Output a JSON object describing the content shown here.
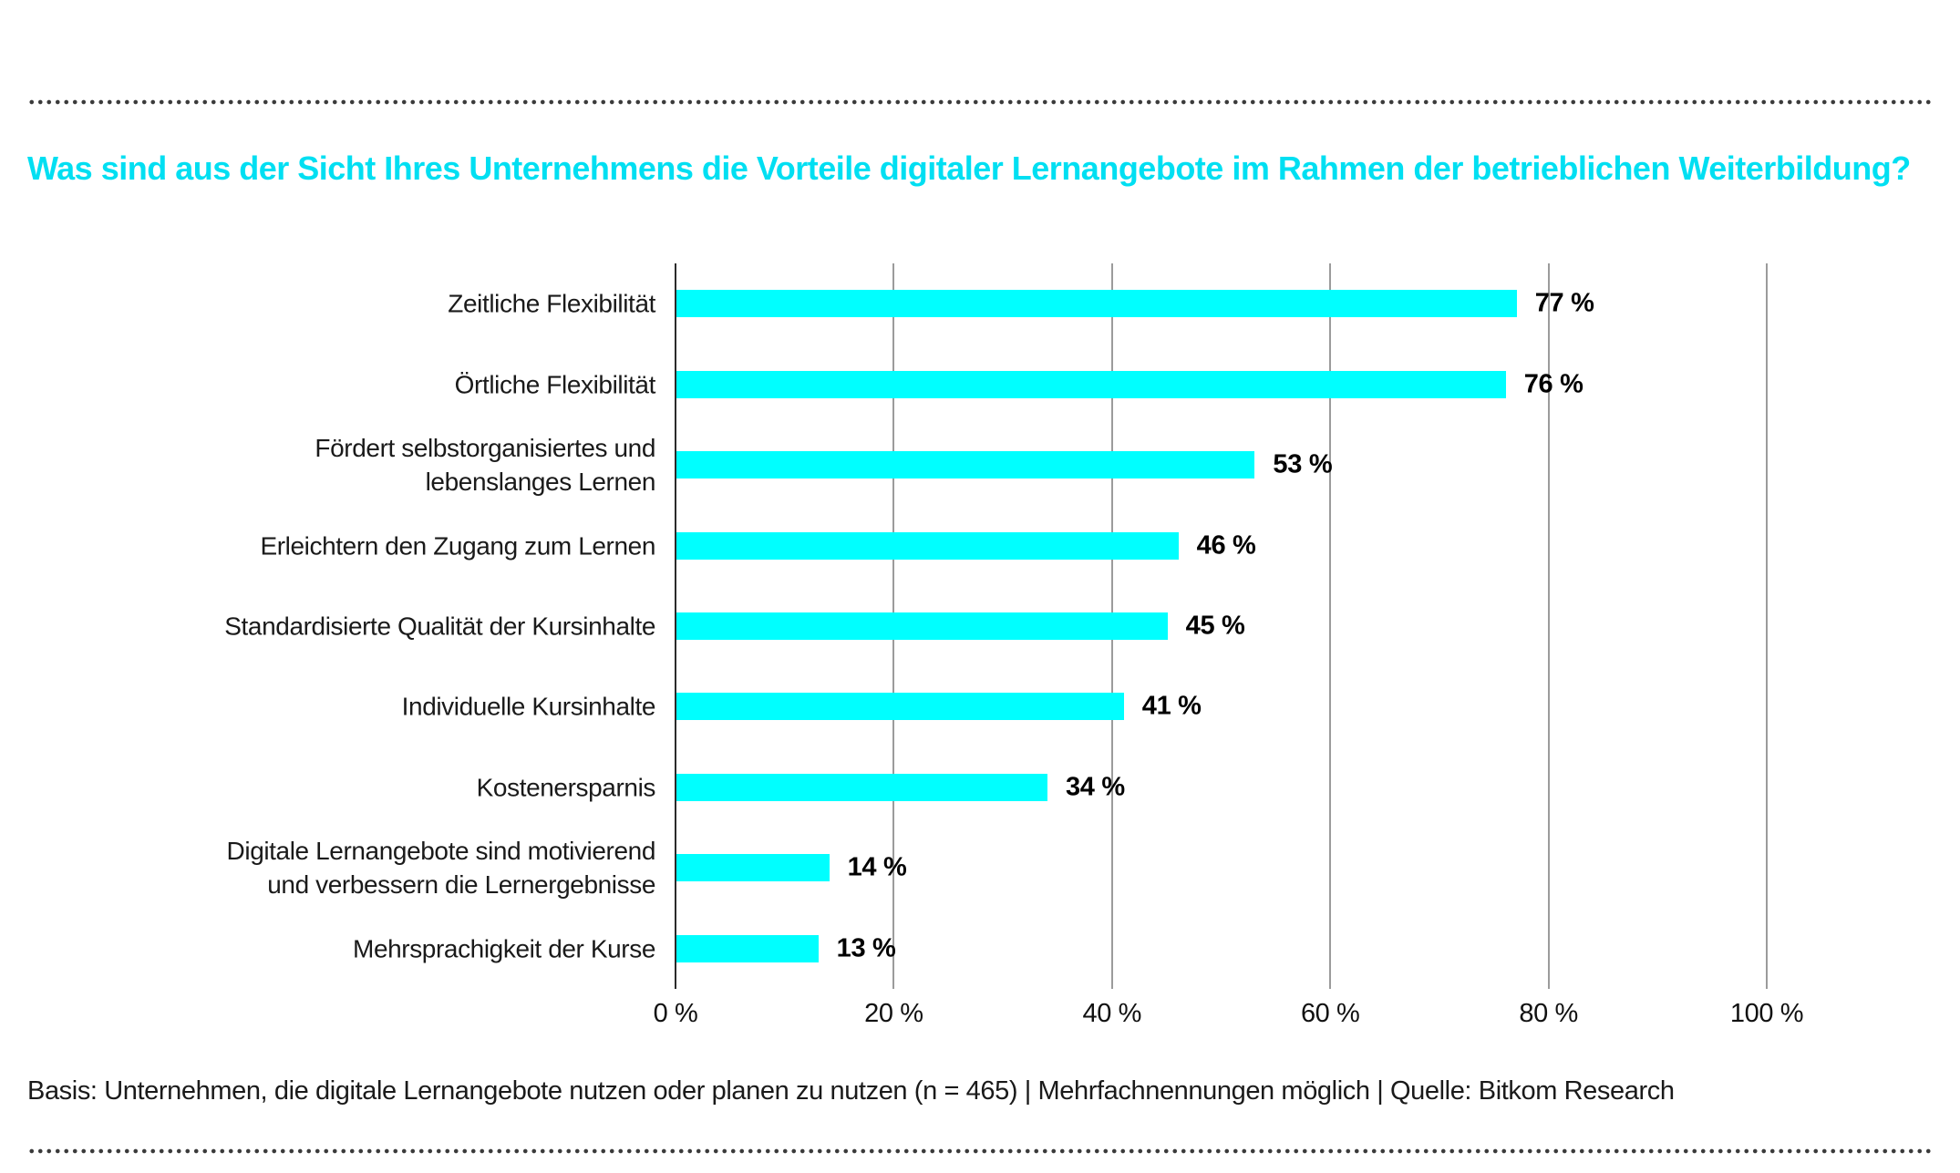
{
  "page": {
    "title": "Was sind aus der Sicht Ihres Unternehmens die Vorteile digitaler Lernangebote im Rahmen der betrieblichen Weiterbildung?",
    "footnote": "Basis: Unternehmen, die digitale Lernangebote nutzen oder planen zu nutzen (n = 465) | Mehrfachnennungen möglich | Quelle: Bitkom Research",
    "colors": {
      "title_cyan": "#00dff2",
      "bar_cyan": "#00ffff",
      "axis_line": "#2b2b2b",
      "grid_line": "#9b9b9b",
      "text": "#1a1a1a"
    }
  },
  "chart_data": {
    "type": "bar",
    "orientation": "horizontal",
    "title": "Was sind aus der Sicht Ihres Unternehmens die Vorteile digitaler Lernangebote im Rahmen der betrieblichen Weiterbildung?",
    "categories": [
      "Zeitliche Flexibilität",
      "Örtliche Flexibilität",
      "Fördert selbstorganisiertes und\nlebenslanges Lernen",
      "Erleichtern den Zugang zum Lernen",
      "Standardisierte Qualität der Kursinhalte",
      "Individuelle Kursinhalte",
      "Kostenersparnis",
      "Digitale Lernangebote sind motivierend\nund verbessern die Lernergebnisse",
      "Mehrsprachigkeit der Kurse"
    ],
    "values": [
      77,
      76,
      53,
      46,
      45,
      41,
      34,
      14,
      13
    ],
    "value_labels": [
      "77 %",
      "76 %",
      "53 %",
      "46 %",
      "45 %",
      "41 %",
      "34 %",
      "14 %",
      "13 %"
    ],
    "xlabel": "",
    "ylabel": "",
    "xlim": [
      0,
      100
    ],
    "x_ticks": [
      {
        "value": 0,
        "label": "0 %"
      },
      {
        "value": 20,
        "label": "20 %"
      },
      {
        "value": 40,
        "label": "40 %"
      },
      {
        "value": 60,
        "label": "60 %"
      },
      {
        "value": 80,
        "label": "80 %"
      },
      {
        "value": 100,
        "label": "100 %"
      }
    ],
    "grid": "vertical-only",
    "legend": "none",
    "bar_color": "#00ffff"
  }
}
